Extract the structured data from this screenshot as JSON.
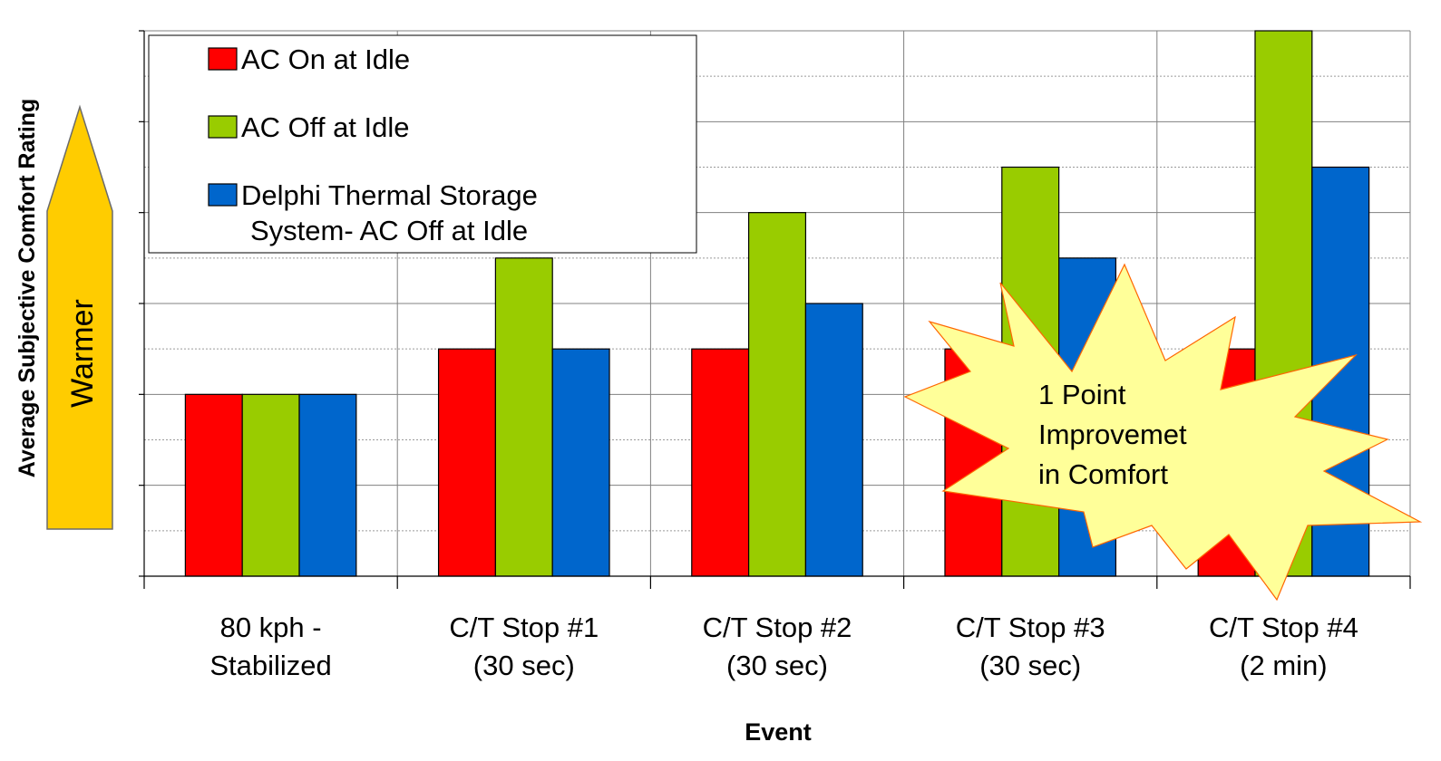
{
  "chart_data": {
    "type": "bar",
    "title": "",
    "xlabel": "Event",
    "ylabel": "Average Subjective Comfort Rating",
    "categories": [
      [
        "80 kph -",
        "Stabilized"
      ],
      [
        "C/T Stop #1",
        "(30 sec)"
      ],
      [
        "C/T Stop #2",
        "(30 sec)"
      ],
      [
        "C/T Stop #3",
        "(30 sec)"
      ],
      [
        "C/T Stop #4",
        "(2 min)"
      ]
    ],
    "series": [
      {
        "name": "AC On at Idle",
        "color": "#ff0000",
        "values": [
          2.0,
          2.5,
          2.5,
          2.5,
          2.5
        ]
      },
      {
        "name": "AC Off at Idle",
        "color": "#99cc00",
        "values": [
          2.0,
          3.5,
          4.0,
          4.5,
          6.0
        ]
      },
      {
        "name": "Delphi Thermal Storage System- AC Off at Idle",
        "color": "#0066cc",
        "values": [
          2.0,
          2.5,
          3.0,
          3.5,
          4.5
        ]
      }
    ],
    "legend_lines": [
      [
        "AC On at Idle"
      ],
      [
        "AC Off at Idle"
      ],
      [
        "Delphi Thermal Storage",
        "System- AC Off at Idle"
      ]
    ],
    "ylim": [
      0,
      6
    ],
    "grid": true,
    "y_tick_labels_shown": false,
    "legend_position": "top-left",
    "annotations": {
      "arrow_label": "Warmer",
      "burst_lines": [
        "1 Point",
        "Improvemet",
        "in Comfort"
      ]
    }
  }
}
